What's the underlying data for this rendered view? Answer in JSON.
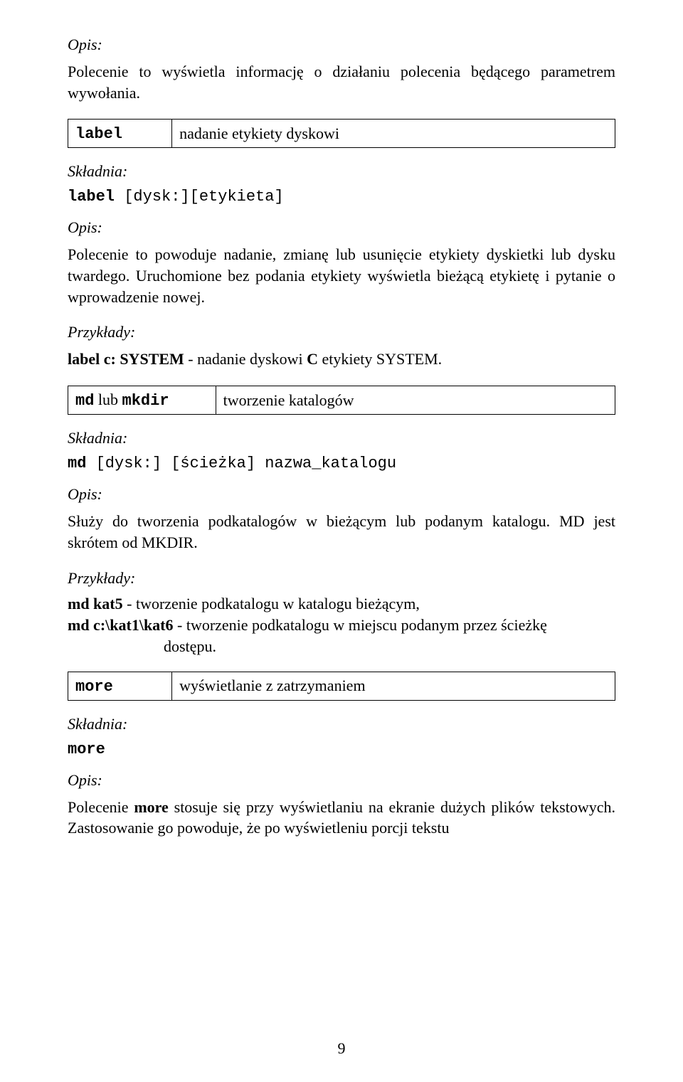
{
  "s1": {
    "opis_label": "Opis:",
    "opis_text": "Polecenie to wyświetla informację o działaniu polecenia będącego parametrem wywołania."
  },
  "label_cmd": {
    "name": "label",
    "desc": "nadanie etykiety dyskowi",
    "skladnia_label": "Składnia:",
    "syntax_bold": "label",
    "syntax_rest": " [dysk:][etykieta]",
    "opis_label": "Opis:",
    "opis_text": "Polecenie to powoduje nadanie, zmianę lub usunięcie etykiety dyskietki lub dysku twardego. Uruchomione bez podania etykiety wyświetla bieżącą etykietę i pytanie o wprowadzenie nowej.",
    "przyklady_label": "Przykłady:",
    "example_bold": "label c: SYSTEM",
    "example_rest": " - nadanie dyskowi ",
    "example_bold2": "C",
    "example_rest2": " etykiety SYSTEM."
  },
  "md_cmd": {
    "name1": "md",
    "lub": " lub ",
    "name2": "mkdir",
    "desc": "tworzenie katalogów",
    "skladnia_label": "Składnia:",
    "syntax_bold": "md",
    "syntax_rest": " [dysk:] [ścieżka] nazwa_katalogu",
    "opis_label": "Opis:",
    "opis_text": "Służy do tworzenia podkatalogów w bieżącym lub podanym katalogu. MD jest skrótem od MKDIR.",
    "przyklady_label": "Przykłady:",
    "ex1_bold": "md kat5",
    "ex1_rest": " - tworzenie podkatalogu w katalogu bieżącym,",
    "ex2_bold": "md c:\\kat1\\kat6",
    "ex2_rest": " - tworzenie podkatalogu w miejscu podanym przez ścieżkę",
    "ex2_line2": "dostępu."
  },
  "more_cmd": {
    "name": "more",
    "desc": "wyświetlanie z zatrzymaniem",
    "skladnia_label": "Składnia:",
    "syntax": "more",
    "opis_label": "Opis:",
    "opis_p1a": "Polecenie ",
    "opis_bold": "more",
    "opis_p1b": " stosuje się przy wyświetlaniu na ekranie dużych plików tekstowych. Zastosowanie go powoduje, że po wyświetleniu porcji tekstu"
  },
  "page_number": "9",
  "layout": {
    "col1_width_label": "19%",
    "col1_width_md": "27%",
    "col1_width_more": "19%"
  }
}
